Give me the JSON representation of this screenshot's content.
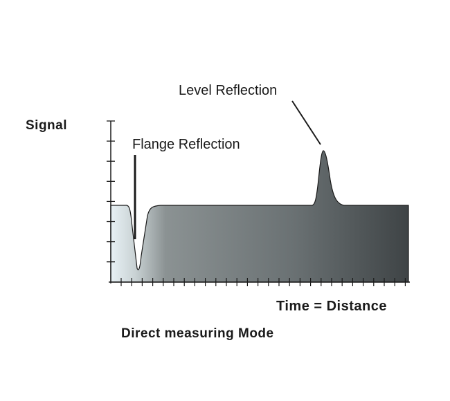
{
  "labels": {
    "y_axis": "Signal",
    "x_axis": "Time = Distance",
    "caption": "Direct measuring Mode",
    "flange": "Flange Reflection",
    "level": "Level Reflection"
  },
  "colors": {
    "fill_left": "#e4eef2",
    "fill_right": "#3f4446",
    "line": "#1a1a1a"
  }
}
